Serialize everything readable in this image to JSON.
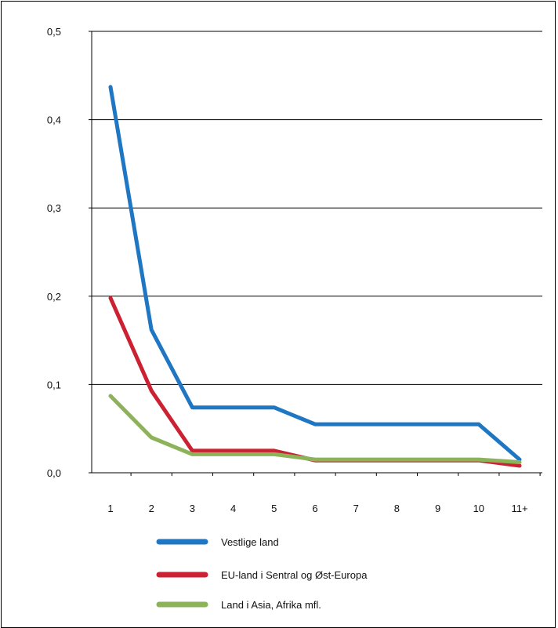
{
  "chart_data": {
    "type": "line",
    "categories": [
      "1",
      "2",
      "3",
      "4",
      "5",
      "6",
      "7",
      "8",
      "9",
      "10",
      "11+"
    ],
    "y_tick_labels": [
      "0,0",
      "0,1",
      "0,2",
      "0,3",
      "0,4",
      "0,5"
    ],
    "y_tick_values": [
      0,
      0.1,
      0.2,
      0.3,
      0.4,
      0.5
    ],
    "ylim": [
      0,
      0.5
    ],
    "grid": true,
    "legend_placement": "bottom",
    "series": [
      {
        "name": "Vestlige land",
        "color": "#1f77c4",
        "values": [
          0.437,
          0.162,
          0.074,
          0.074,
          0.074,
          0.055,
          0.055,
          0.055,
          0.055,
          0.055,
          0.015
        ]
      },
      {
        "name": "EU-land i Sentral og Øst-Europa",
        "color": "#cc2133",
        "values": [
          0.198,
          0.093,
          0.025,
          0.025,
          0.025,
          0.014,
          0.014,
          0.014,
          0.014,
          0.014,
          0.008
        ]
      },
      {
        "name": "Land i Asia, Afrika mfl.",
        "color": "#8cb35a",
        "values": [
          0.087,
          0.04,
          0.021,
          0.021,
          0.021,
          0.015,
          0.015,
          0.015,
          0.015,
          0.015,
          0.012
        ]
      }
    ]
  }
}
